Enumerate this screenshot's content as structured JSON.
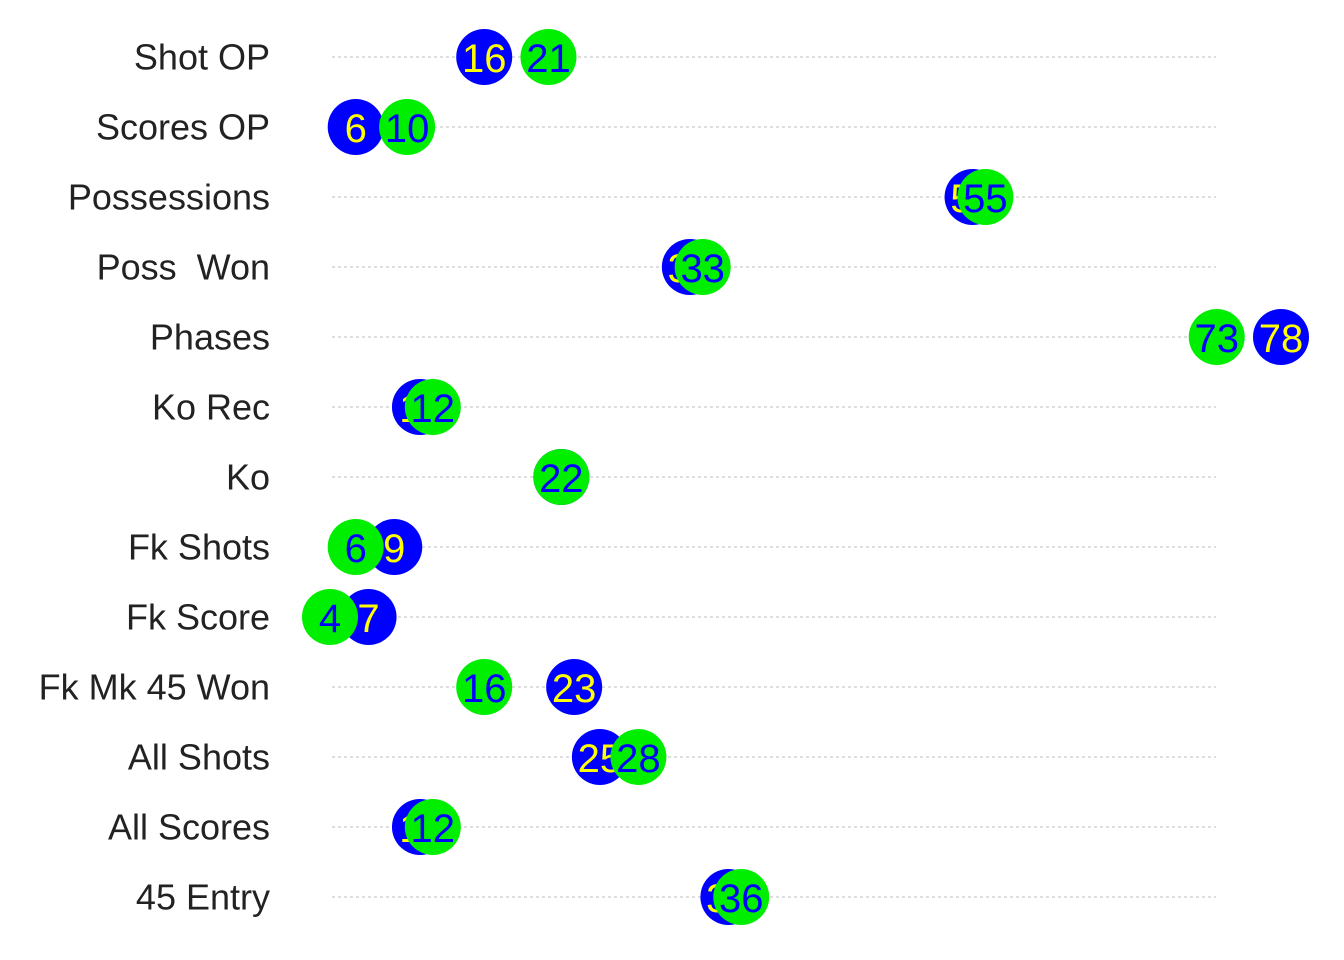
{
  "chart_data": {
    "type": "scatter",
    "categories": [
      "Shot OP",
      "Scores OP",
      "Possessions",
      "Poss  Won",
      "Phases",
      "Ko Rec",
      "Ko",
      "Fk Shots",
      "Fk Score",
      "Fk Mk 45 Won",
      "All Shots",
      "All Scores",
      "45 Entry"
    ],
    "series": [
      {
        "color": "#0000ff",
        "text_color": "#ffff00",
        "values": [
          16,
          6,
          54,
          32,
          78,
          11,
          22,
          9,
          7,
          23,
          25,
          11,
          35
        ]
      },
      {
        "color": "#00ee00",
        "text_color": "#0000ff",
        "values": [
          21,
          10,
          55,
          33,
          73,
          12,
          22,
          6,
          4,
          16,
          28,
          12,
          36
        ]
      }
    ],
    "xlim": [
      4,
      78
    ],
    "grid": "horizontal dashed",
    "legend": "none"
  }
}
